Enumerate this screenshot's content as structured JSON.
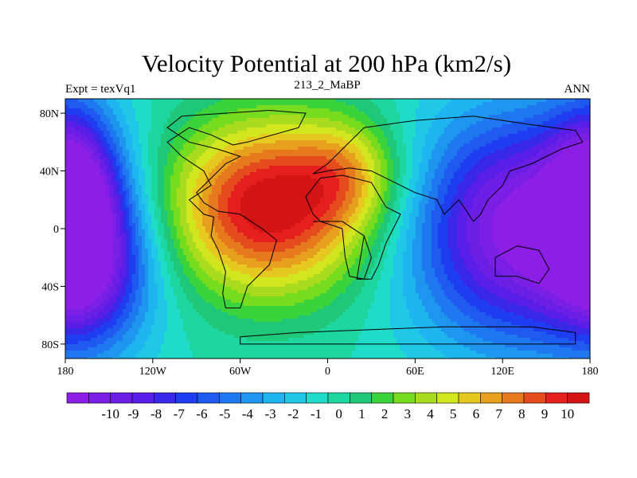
{
  "chart_data": {
    "type": "heatmap",
    "title": "Velocity Potential at 200 hPa (km2/s)",
    "subtitle_left": "Expt = texVq1",
    "subtitle_center": "213_2_MaBP",
    "subtitle_right": "ANN",
    "x_ticks": [
      {
        "value": -180,
        "label": "180"
      },
      {
        "value": -120,
        "label": "120W"
      },
      {
        "value": -60,
        "label": "60W"
      },
      {
        "value": 0,
        "label": "0"
      },
      {
        "value": 60,
        "label": "60E"
      },
      {
        "value": 120,
        "label": "120E"
      },
      {
        "value": 180,
        "label": "180"
      }
    ],
    "y_ticks": [
      {
        "value": 80,
        "label": "80N"
      },
      {
        "value": 40,
        "label": "40N"
      },
      {
        "value": 0,
        "label": "0"
      },
      {
        "value": -40,
        "label": "40S"
      },
      {
        "value": -80,
        "label": "80S"
      }
    ],
    "xlim": [
      -180,
      180
    ],
    "ylim": [
      -90,
      90
    ],
    "colorbar": {
      "labels": [
        "-10",
        "-9",
        "-8",
        "-7",
        "-6",
        "-5",
        "-4",
        "-3",
        "-2",
        "-1",
        "0",
        "1",
        "2",
        "3",
        "4",
        "5",
        "6",
        "7",
        "8",
        "9",
        "10"
      ],
      "colors": [
        "#8c1ee6",
        "#7b1ee6",
        "#6a1ee6",
        "#5a1ee8",
        "#3a28e8",
        "#1e3cf0",
        "#1e5af0",
        "#1e78f0",
        "#1e96f0",
        "#1eb4f0",
        "#1ec8e6",
        "#1edcc8",
        "#1ed7a0",
        "#1ec878",
        "#3cd23c",
        "#78dc1e",
        "#aadc1e",
        "#d2e61e",
        "#e6c81e",
        "#e6a01e",
        "#e6781e",
        "#e64b1e",
        "#e61e1e",
        "#d21414"
      ]
    },
    "field_centers": [
      {
        "lon": -40,
        "lat": 15,
        "amp": 10.5,
        "sx": 50,
        "sy": 42
      },
      {
        "lon": 15,
        "lat": 40,
        "amp": 3.5,
        "sx": 25,
        "sy": 25
      },
      {
        "lon": 135,
        "lat": 0,
        "amp": -10.5,
        "sx": 55,
        "sy": 55
      },
      {
        "lon": -175,
        "lat": 20,
        "amp": -8.5,
        "sx": 22,
        "sy": 45
      },
      {
        "lon": -160,
        "lat": -30,
        "amp": -5,
        "sx": 30,
        "sy": 40
      }
    ],
    "continents": [
      [
        [
          -100,
          78
        ],
        [
          -40,
          82
        ],
        [
          -15,
          80
        ],
        [
          -20,
          70
        ],
        [
          -55,
          60
        ],
        [
          -65,
          58
        ],
        [
          -80,
          65
        ],
        [
          -95,
          70
        ],
        [
          -110,
          60
        ],
        [
          -100,
          50
        ],
        [
          -85,
          40
        ],
        [
          -80,
          30
        ],
        [
          -95,
          20
        ],
        [
          -85,
          10
        ],
        [
          -78,
          8
        ],
        [
          -80,
          -5
        ],
        [
          -75,
          -15
        ],
        [
          -70,
          -30
        ],
        [
          -72,
          -45
        ],
        [
          -70,
          -55
        ],
        [
          -60,
          -55
        ],
        [
          -55,
          -40
        ],
        [
          -40,
          -25
        ],
        [
          -35,
          -8
        ],
        [
          -45,
          0
        ],
        [
          -60,
          10
        ],
        [
          -75,
          12
        ],
        [
          -85,
          18
        ],
        [
          -90,
          25
        ],
        [
          -80,
          35
        ],
        [
          -70,
          45
        ],
        [
          -60,
          50
        ],
        [
          -75,
          55
        ],
        [
          -95,
          60
        ],
        [
          -110,
          70
        ],
        [
          -100,
          78
        ]
      ],
      [
        [
          -10,
          5
        ],
        [
          10,
          5
        ],
        [
          25,
          -5
        ],
        [
          30,
          -20
        ],
        [
          25,
          -35
        ],
        [
          15,
          -33
        ],
        [
          12,
          -20
        ],
        [
          10,
          0
        ],
        [
          -5,
          5
        ],
        [
          -10,
          10
        ],
        [
          -15,
          22
        ],
        [
          -5,
          35
        ],
        [
          10,
          37
        ],
        [
          30,
          32
        ],
        [
          40,
          15
        ],
        [
          50,
          10
        ],
        [
          45,
          0
        ],
        [
          40,
          -10
        ],
        [
          35,
          -25
        ],
        [
          30,
          -35
        ],
        [
          20,
          -35
        ],
        [
          25,
          -5
        ],
        [
          10,
          5
        ]
      ],
      [
        [
          -10,
          38
        ],
        [
          0,
          45
        ],
        [
          10,
          55
        ],
        [
          25,
          70
        ],
        [
          60,
          75
        ],
        [
          100,
          78
        ],
        [
          140,
          72
        ],
        [
          170,
          68
        ],
        [
          175,
          60
        ],
        [
          160,
          55
        ],
        [
          140,
          45
        ],
        [
          125,
          40
        ],
        [
          120,
          30
        ],
        [
          110,
          20
        ],
        [
          105,
          10
        ],
        [
          100,
          5
        ],
        [
          90,
          20
        ],
        [
          80,
          10
        ],
        [
          75,
          20
        ],
        [
          60,
          25
        ],
        [
          50,
          30
        ],
        [
          40,
          35
        ],
        [
          30,
          40
        ],
        [
          15,
          42
        ],
        [
          0,
          40
        ],
        [
          -10,
          38
        ]
      ],
      [
        [
          115,
          -20
        ],
        [
          130,
          -12
        ],
        [
          145,
          -15
        ],
        [
          152,
          -28
        ],
        [
          145,
          -38
        ],
        [
          130,
          -33
        ],
        [
          115,
          -33
        ],
        [
          115,
          -20
        ]
      ],
      [
        [
          -60,
          -75
        ],
        [
          -20,
          -72
        ],
        [
          30,
          -70
        ],
        [
          80,
          -68
        ],
        [
          140,
          -68
        ],
        [
          170,
          -72
        ],
        [
          170,
          -80
        ],
        [
          -60,
          -80
        ],
        [
          -60,
          -75
        ]
      ]
    ]
  }
}
